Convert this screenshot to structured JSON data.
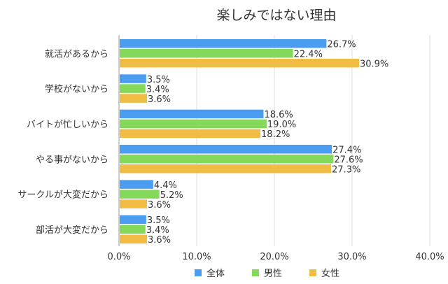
{
  "chart_data": {
    "type": "bar",
    "orientation": "horizontal",
    "title": "楽しみではない理由",
    "categories": [
      "就活があるから",
      "学校がないから",
      "バイトが忙しいから",
      "やる事がないから",
      "サークルが大変だから",
      "部活が大変だから"
    ],
    "series": [
      {
        "name": "全体",
        "color": "#4b9df2",
        "values": [
          26.7,
          3.5,
          18.6,
          27.4,
          4.4,
          3.5
        ]
      },
      {
        "name": "男性",
        "color": "#84d95a",
        "values": [
          22.4,
          3.4,
          19.0,
          27.6,
          5.2,
          3.4
        ]
      },
      {
        "name": "女性",
        "color": "#f1bc43",
        "values": [
          30.9,
          3.6,
          18.2,
          27.3,
          3.6,
          3.6
        ]
      }
    ],
    "xlim": [
      0,
      40
    ],
    "xticks": [
      "0.0%",
      "10.0%",
      "20.0%",
      "30.0%",
      "40.0%"
    ],
    "grid": true,
    "legend": "bottom"
  }
}
